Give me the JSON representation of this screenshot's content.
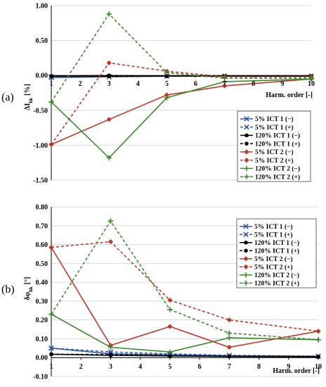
{
  "panels": [
    {
      "panel_label": "(a)",
      "chart_data": {
        "type": "line",
        "ylabel_main": "ΔI",
        "ylabel_sub": "hk",
        "ylabel_unit": "[%]",
        "xlabel": "Harm. order [-]",
        "xlim": [
          1,
          10
        ],
        "ylim": [
          -1.5,
          1.0
        ],
        "x_ticks": [
          "1",
          "2",
          "3",
          "4",
          "5",
          "6",
          "7",
          "8",
          "9",
          "10"
        ],
        "y_ticks": [
          "1.00",
          "0.50",
          "0.00",
          "-0.50",
          "-1.00",
          "-1.50"
        ],
        "y_tick_values": [
          1.0,
          0.5,
          0.0,
          -0.5,
          -1.0,
          -1.5
        ],
        "grid": "horizontal",
        "legend_position": "center-right",
        "series": [
          {
            "name": "5% ICT 1 (−)",
            "color": "#2e5aa8",
            "dash": "solid",
            "marker": "x",
            "x": [
              1,
              3,
              5,
              7,
              10
            ],
            "y": [
              -0.03,
              -0.02,
              -0.01,
              -0.01,
              -0.01
            ]
          },
          {
            "name": "5% ICT 1 (+)",
            "color": "#2e5aa8",
            "dash": "dashed",
            "marker": "x",
            "x": [
              1,
              3,
              5,
              7,
              10
            ],
            "y": [
              -0.02,
              -0.02,
              -0.01,
              -0.01,
              -0.01
            ]
          },
          {
            "name": "120% ICT 1 (−)",
            "color": "#000000",
            "dash": "solid",
            "marker": "circle",
            "x": [
              1,
              3,
              5,
              7,
              10
            ],
            "y": [
              -0.01,
              -0.01,
              -0.01,
              -0.01,
              -0.01
            ]
          },
          {
            "name": "120% ICT 1 (+)",
            "color": "#000000",
            "dash": "dashed",
            "marker": "circle",
            "x": [
              1,
              3,
              5,
              7,
              10
            ],
            "y": [
              -0.01,
              0.0,
              -0.01,
              -0.01,
              -0.01
            ]
          },
          {
            "name": "5% ICT 2 (−)",
            "color": "#c0392b",
            "dash": "solid",
            "marker": "diamond",
            "x": [
              1,
              3,
              5,
              7,
              10
            ],
            "y": [
              -0.99,
              -0.63,
              -0.28,
              -0.15,
              -0.05
            ]
          },
          {
            "name": "5% ICT 2 (+)",
            "color": "#c0392b",
            "dash": "dashed",
            "marker": "diamond",
            "x": [
              1,
              3,
              5,
              7,
              10
            ],
            "y": [
              -0.99,
              0.18,
              0.06,
              -0.02,
              -0.02
            ]
          },
          {
            "name": "120% ICT 2 (−)",
            "color": "#3a8a2a",
            "dash": "solid",
            "marker": "plus",
            "x": [
              1,
              3,
              5,
              7,
              10
            ],
            "y": [
              -0.38,
              -1.18,
              -0.32,
              -0.09,
              -0.05
            ]
          },
          {
            "name": "120% ICT 2 (+)",
            "color": "#3a8a2a",
            "dash": "dashed",
            "marker": "plus",
            "x": [
              1,
              3,
              5,
              7,
              10
            ],
            "y": [
              -0.38,
              0.88,
              0.04,
              -0.04,
              -0.04
            ]
          }
        ]
      }
    },
    {
      "panel_label": "(b)",
      "chart_data": {
        "type": "line",
        "ylabel_main": "δφ",
        "ylabel_sub": "hk",
        "ylabel_unit": "[°]",
        "xlabel": "Harm. order [-]",
        "xlim": [
          1,
          10
        ],
        "ylim": [
          -0.1,
          0.8
        ],
        "x_ticks": [
          "1",
          "2",
          "3",
          "4",
          "5",
          "6",
          "7",
          "8",
          "9",
          "10"
        ],
        "y_ticks": [
          "0.80",
          "0.70",
          "0.60",
          "0.50",
          "0.40",
          "0.30",
          "0.20",
          "0.10",
          "0.00",
          "-0.10"
        ],
        "y_tick_values": [
          0.8,
          0.7,
          0.6,
          0.5,
          0.4,
          0.3,
          0.2,
          0.1,
          0.0,
          -0.1
        ],
        "grid": "horizontal",
        "legend_position": "top-right",
        "series": [
          {
            "name": "5% ICT 1 (−)",
            "color": "#2e5aa8",
            "dash": "solid",
            "marker": "x",
            "x": [
              1,
              3,
              5,
              7,
              10
            ],
            "y": [
              0.05,
              0.02,
              0.015,
              0.01,
              0.007
            ]
          },
          {
            "name": "5% ICT 1 (+)",
            "color": "#2e5aa8",
            "dash": "dashed",
            "marker": "x",
            "x": [
              1,
              3,
              5,
              7,
              10
            ],
            "y": [
              0.05,
              0.03,
              0.02,
              0.012,
              0.008
            ]
          },
          {
            "name": "120% ICT 1 (−)",
            "color": "#000000",
            "dash": "solid",
            "marker": "circle",
            "x": [
              1,
              3,
              5,
              7,
              10
            ],
            "y": [
              0.018,
              0.012,
              0.009,
              0.006,
              0.004
            ]
          },
          {
            "name": "120% ICT 1 (+)",
            "color": "#000000",
            "dash": "dashed",
            "marker": "circle",
            "x": [
              1,
              3,
              5,
              7,
              10
            ],
            "y": [
              0.018,
              0.016,
              0.01,
              0.007,
              0.005
            ]
          },
          {
            "name": "5% ICT 2 (−)",
            "color": "#c0392b",
            "dash": "solid",
            "marker": "diamond",
            "x": [
              1,
              3,
              5,
              7,
              10
            ],
            "y": [
              0.585,
              0.065,
              0.165,
              0.055,
              0.14
            ]
          },
          {
            "name": "5% ICT 2 (+)",
            "color": "#c0392b",
            "dash": "dashed",
            "marker": "diamond",
            "x": [
              1,
              3,
              5,
              7,
              10
            ],
            "y": [
              0.585,
              0.615,
              0.305,
              0.2,
              0.14
            ]
          },
          {
            "name": "120% ICT 2 (−)",
            "color": "#3a8a2a",
            "dash": "solid",
            "marker": "plus",
            "x": [
              1,
              3,
              5,
              7,
              10
            ],
            "y": [
              0.23,
              0.055,
              0.03,
              0.105,
              0.095
            ]
          },
          {
            "name": "120% ICT 2 (+)",
            "color": "#3a8a2a",
            "dash": "dashed",
            "marker": "plus",
            "x": [
              1,
              3,
              5,
              7,
              10
            ],
            "y": [
              0.23,
              0.725,
              0.255,
              0.13,
              0.095
            ]
          }
        ]
      }
    }
  ]
}
